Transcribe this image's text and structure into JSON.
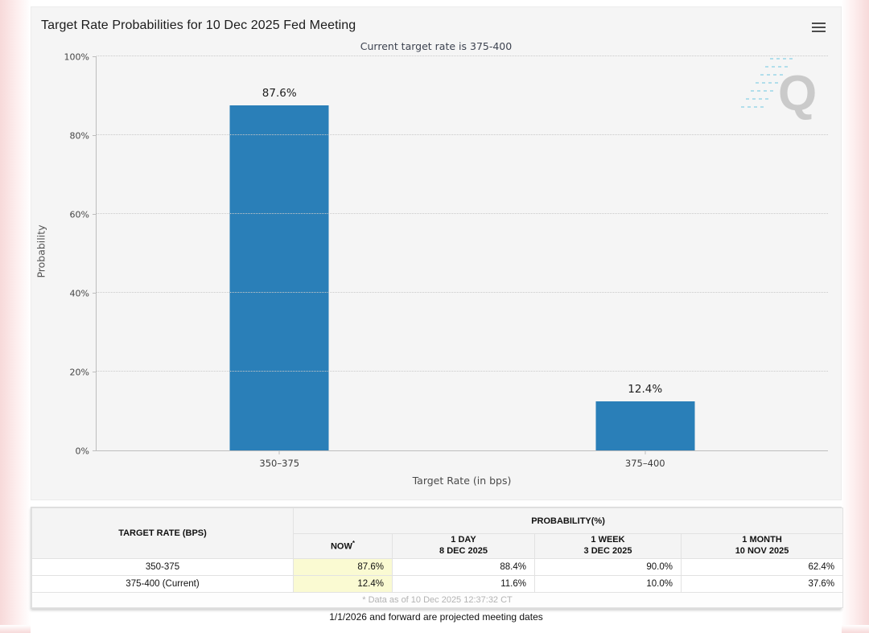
{
  "header": {
    "title": "Target Rate Probabilities for 10 Dec 2025 Fed Meeting",
    "subtitle": "Current target rate is 375-400"
  },
  "chart_data": {
    "type": "bar",
    "title": "Target Rate Probabilities for 10 Dec 2025 Fed Meeting",
    "subtitle": "Current target rate is 375-400",
    "categories": [
      "350–375",
      "375–400"
    ],
    "values": [
      87.6,
      12.4
    ],
    "value_labels": [
      "87.6%",
      "12.4%"
    ],
    "xlabel": "Target Rate (in bps)",
    "ylabel": "Probability",
    "ylim": [
      0,
      100
    ],
    "yticks": [
      0,
      20,
      40,
      60,
      80,
      100
    ],
    "grid": "horizontal-dotted",
    "legend": "none",
    "bar_color": "#2a7fb8"
  },
  "watermark": {
    "letter": "Q"
  },
  "colors": {
    "bar": "#2a7fb8",
    "now_highlight": "#fafad2",
    "card_bg": "#f5f5f5",
    "edge_tint": "#f7d9d9"
  },
  "table": {
    "col1_header": "TARGET RATE (BPS)",
    "group_header": "PROBABILITY(%)",
    "columns": [
      {
        "line1": "NOW",
        "note": "*",
        "line2": ""
      },
      {
        "line1": "1 DAY",
        "line2": "8 DEC 2025"
      },
      {
        "line1": "1 WEEK",
        "line2": "3 DEC 2025"
      },
      {
        "line1": "1 MONTH",
        "line2": "10 NOV 2025"
      }
    ],
    "rows": [
      {
        "cells": [
          "350-375",
          "87.6%",
          "88.4%",
          "90.0%",
          "62.4%"
        ]
      },
      {
        "cells": [
          "375-400 (Current)",
          "12.4%",
          "11.6%",
          "10.0%",
          "37.6%"
        ]
      }
    ],
    "footnote": "* Data as of 10 Dec 2025 12:37:32 CT"
  },
  "footer": {
    "note": "1/1/2026 and forward are projected meeting dates"
  }
}
